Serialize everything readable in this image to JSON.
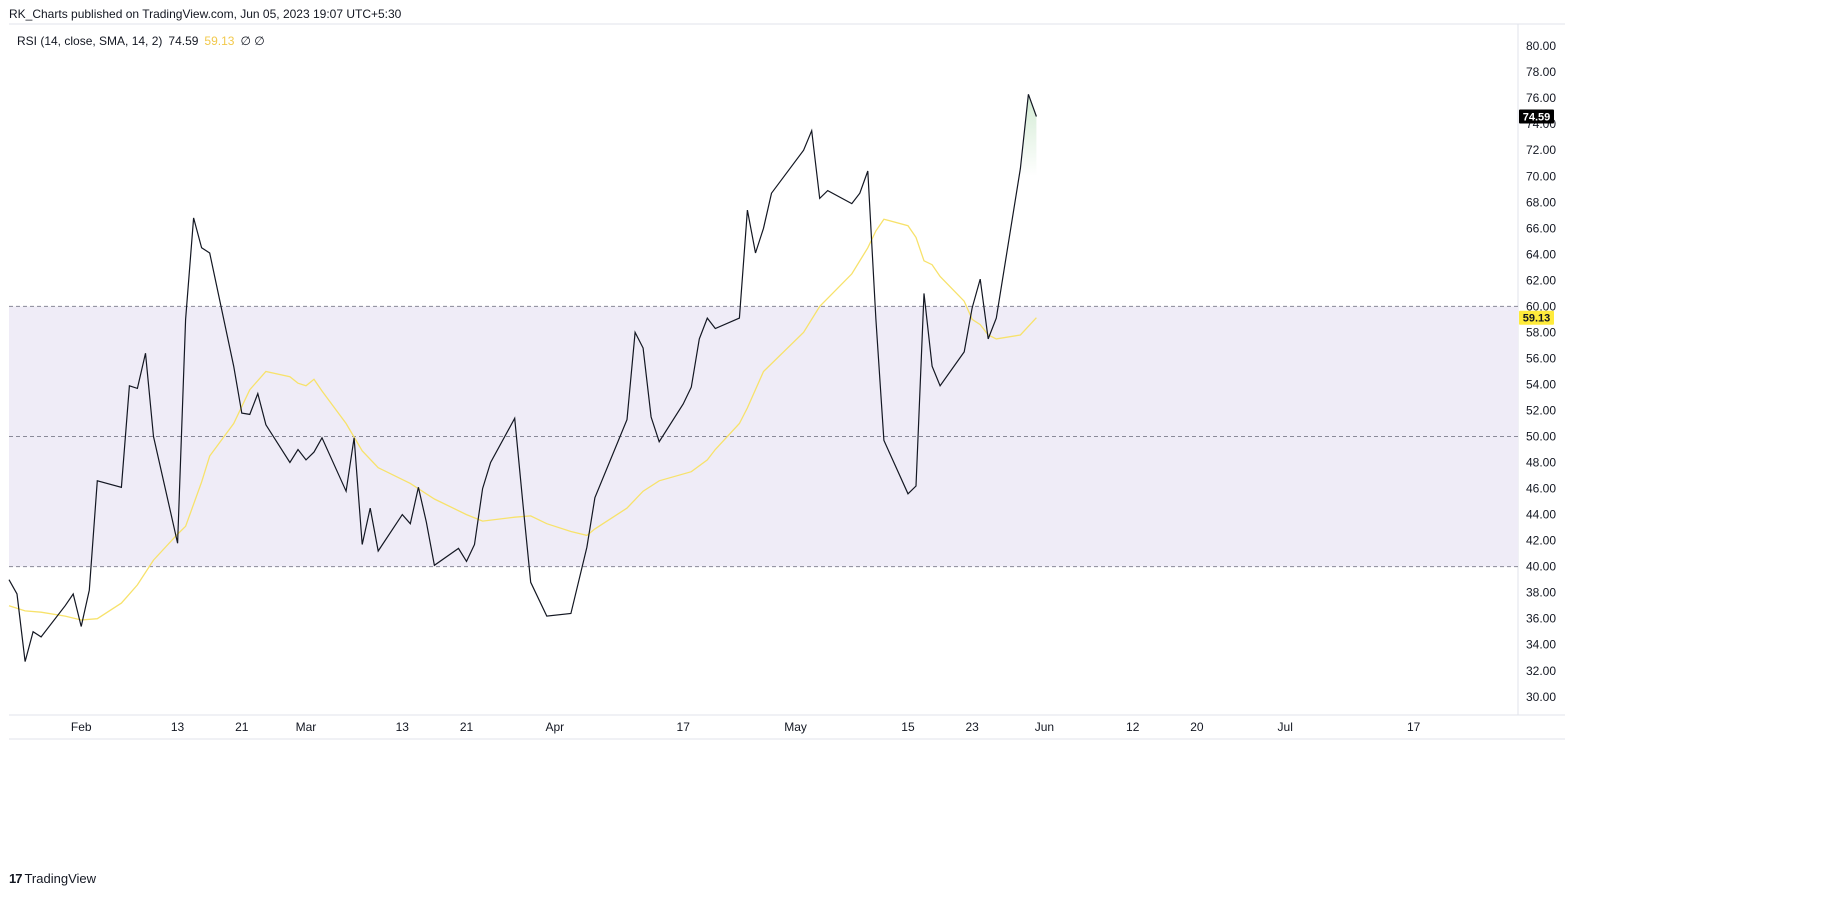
{
  "header": {
    "published": "RK_Charts published on TradingView.com, Jun 05, 2023 19:07 UTC+5:30"
  },
  "indicator": {
    "name": "RSI (14, close, SMA, 14, 2)",
    "rsi_value": "74.59",
    "sma_value": "59.13",
    "extra": "∅  ∅"
  },
  "brand": {
    "mark": "17",
    "name": "TradingView"
  },
  "colors": {
    "rsi_line": "#131722",
    "sma_line": "#f7e26b",
    "band_fill": "#efecf7",
    "band_line": "#8a8a99",
    "sma_badge": "#ffeb3b",
    "rsi_badge": "#000000"
  },
  "chart_data": {
    "type": "line",
    "title": "",
    "ylim": [
      28.6,
      81.7
    ],
    "yticks": [
      30,
      32,
      34,
      36,
      38,
      40,
      42,
      44,
      46,
      48,
      50,
      52,
      54,
      56,
      58,
      60,
      62,
      64,
      66,
      68,
      70,
      72,
      74,
      76,
      78,
      80
    ],
    "ytick_labels": [
      "30.00",
      "32.00",
      "34.00",
      "36.00",
      "38.00",
      "40.00",
      "42.00",
      "44.00",
      "46.00",
      "48.00",
      "50.00",
      "52.00",
      "54.00",
      "56.00",
      "58.00",
      "60.00",
      "62.00",
      "64.00",
      "66.00",
      "68.00",
      "70.00",
      "72.00",
      "74.00",
      "76.00",
      "78.00",
      "80.00"
    ],
    "xlim": [
      "2023-01-23",
      "2023-07-30"
    ],
    "xticks": [
      {
        "date": "2023-02-01",
        "label": "Feb"
      },
      {
        "date": "2023-02-13",
        "label": "13"
      },
      {
        "date": "2023-02-21",
        "label": "21"
      },
      {
        "date": "2023-03-01",
        "label": "Mar"
      },
      {
        "date": "2023-03-13",
        "label": "13"
      },
      {
        "date": "2023-03-21",
        "label": "21"
      },
      {
        "date": "2023-04-01",
        "label": "Apr"
      },
      {
        "date": "2023-04-17",
        "label": "17"
      },
      {
        "date": "2023-05-01",
        "label": "May"
      },
      {
        "date": "2023-05-15",
        "label": "15"
      },
      {
        "date": "2023-05-23",
        "label": "23"
      },
      {
        "date": "2023-06-01",
        "label": "Jun"
      },
      {
        "date": "2023-06-12",
        "label": "12"
      },
      {
        "date": "2023-06-20",
        "label": "20"
      },
      {
        "date": "2023-07-01",
        "label": "Jul"
      },
      {
        "date": "2023-07-17",
        "label": "17"
      }
    ],
    "bands": {
      "upper": 60,
      "middle": 50,
      "lower": 40
    },
    "grid": false,
    "series": [
      {
        "values": [
          [
            "2023-01-23",
            39.0
          ],
          [
            "2023-01-24",
            37.9
          ],
          [
            "2023-01-25",
            32.7
          ],
          [
            "2023-01-26",
            35.0
          ],
          [
            "2023-01-27",
            34.6
          ],
          [
            "2023-01-30",
            37.0
          ],
          [
            "2023-01-31",
            37.9
          ],
          [
            "2023-02-01",
            35.4
          ],
          [
            "2023-02-02",
            38.2
          ],
          [
            "2023-02-03",
            46.6
          ],
          [
            "2023-02-06",
            46.1
          ],
          [
            "2023-02-07",
            53.9
          ],
          [
            "2023-02-08",
            53.7
          ],
          [
            "2023-02-09",
            56.4
          ],
          [
            "2023-02-10",
            50.0
          ],
          [
            "2023-02-13",
            41.8
          ],
          [
            "2023-02-14",
            59.0
          ],
          [
            "2023-02-15",
            66.8
          ],
          [
            "2023-02-16",
            64.5
          ],
          [
            "2023-02-17",
            64.1
          ],
          [
            "2023-02-20",
            55.4
          ],
          [
            "2023-02-21",
            51.8
          ],
          [
            "2023-02-22",
            51.7
          ],
          [
            "2023-02-23",
            53.3
          ],
          [
            "2023-02-24",
            50.9
          ],
          [
            "2023-02-27",
            48.0
          ],
          [
            "2023-02-28",
            49.0
          ],
          [
            "2023-03-01",
            48.2
          ],
          [
            "2023-03-02",
            48.8
          ],
          [
            "2023-03-03",
            49.9
          ],
          [
            "2023-03-06",
            45.8
          ],
          [
            "2023-03-07",
            49.9
          ],
          [
            "2023-03-08",
            41.7
          ],
          [
            "2023-03-09",
            44.5
          ],
          [
            "2023-03-10",
            41.2
          ],
          [
            "2023-03-13",
            44.0
          ],
          [
            "2023-03-14",
            43.3
          ],
          [
            "2023-03-15",
            46.1
          ],
          [
            "2023-03-16",
            43.4
          ],
          [
            "2023-03-17",
            40.1
          ],
          [
            "2023-03-20",
            41.4
          ],
          [
            "2023-03-21",
            40.4
          ],
          [
            "2023-03-22",
            41.7
          ],
          [
            "2023-03-23",
            46.0
          ],
          [
            "2023-03-24",
            48.0
          ],
          [
            "2023-03-27",
            51.4
          ],
          [
            "2023-03-28",
            45.0
          ],
          [
            "2023-03-29",
            38.8
          ],
          [
            "2023-03-31",
            36.2
          ],
          [
            "2023-04-03",
            36.4
          ],
          [
            "2023-04-05",
            41.5
          ],
          [
            "2023-04-06",
            45.3
          ],
          [
            "2023-04-10",
            51.3
          ],
          [
            "2023-04-11",
            58.0
          ],
          [
            "2023-04-12",
            56.8
          ],
          [
            "2023-04-13",
            51.5
          ],
          [
            "2023-04-14",
            49.6
          ],
          [
            "2023-04-17",
            52.5
          ],
          [
            "2023-04-18",
            53.8
          ],
          [
            "2023-04-19",
            57.5
          ],
          [
            "2023-04-20",
            59.1
          ],
          [
            "2023-04-21",
            58.3
          ],
          [
            "2023-04-24",
            59.1
          ],
          [
            "2023-04-25",
            67.4
          ],
          [
            "2023-04-26",
            64.1
          ],
          [
            "2023-04-27",
            66.0
          ],
          [
            "2023-04-28",
            68.7
          ],
          [
            "2023-05-02",
            72.0
          ],
          [
            "2023-05-03",
            73.5
          ],
          [
            "2023-05-04",
            68.3
          ],
          [
            "2023-05-05",
            68.9
          ],
          [
            "2023-05-08",
            67.9
          ],
          [
            "2023-05-09",
            68.7
          ],
          [
            "2023-05-10",
            70.4
          ],
          [
            "2023-05-11",
            59.0
          ],
          [
            "2023-05-12",
            49.7
          ],
          [
            "2023-05-15",
            45.6
          ],
          [
            "2023-05-16",
            46.2
          ],
          [
            "2023-05-17",
            61.0
          ],
          [
            "2023-05-18",
            55.4
          ],
          [
            "2023-05-19",
            53.9
          ],
          [
            "2023-05-22",
            56.5
          ],
          [
            "2023-05-23",
            59.9
          ],
          [
            "2023-05-24",
            62.1
          ],
          [
            "2023-05-25",
            57.5
          ],
          [
            "2023-05-26",
            59.1
          ],
          [
            "2023-05-29",
            70.6
          ],
          [
            "2023-05-30",
            76.3
          ],
          [
            "2023-05-31",
            74.59
          ]
        ]
      },
      {
        "values": [
          [
            "2023-01-23",
            37.0
          ],
          [
            "2023-01-25",
            36.6
          ],
          [
            "2023-01-27",
            36.5
          ],
          [
            "2023-01-30",
            36.2
          ],
          [
            "2023-02-01",
            35.9
          ],
          [
            "2023-02-03",
            36.0
          ],
          [
            "2023-02-06",
            37.2
          ],
          [
            "2023-02-08",
            38.6
          ],
          [
            "2023-02-10",
            40.5
          ],
          [
            "2023-02-13",
            42.5
          ],
          [
            "2023-02-14",
            43.1
          ],
          [
            "2023-02-16",
            46.5
          ],
          [
            "2023-02-17",
            48.5
          ],
          [
            "2023-02-20",
            51.0
          ],
          [
            "2023-02-22",
            53.6
          ],
          [
            "2023-02-24",
            55.0
          ],
          [
            "2023-02-27",
            54.6
          ],
          [
            "2023-02-28",
            54.1
          ],
          [
            "2023-03-01",
            53.9
          ],
          [
            "2023-03-02",
            54.4
          ],
          [
            "2023-03-03",
            53.5
          ],
          [
            "2023-03-06",
            51.0
          ],
          [
            "2023-03-08",
            48.9
          ],
          [
            "2023-03-10",
            47.6
          ],
          [
            "2023-03-14",
            46.4
          ],
          [
            "2023-03-17",
            45.2
          ],
          [
            "2023-03-21",
            44.0
          ],
          [
            "2023-03-23",
            43.5
          ],
          [
            "2023-03-27",
            43.8
          ],
          [
            "2023-03-29",
            43.9
          ],
          [
            "2023-03-31",
            43.3
          ],
          [
            "2023-04-03",
            42.7
          ],
          [
            "2023-04-05",
            42.4
          ],
          [
            "2023-04-06",
            42.9
          ],
          [
            "2023-04-10",
            44.5
          ],
          [
            "2023-04-12",
            45.8
          ],
          [
            "2023-04-14",
            46.6
          ],
          [
            "2023-04-18",
            47.3
          ],
          [
            "2023-04-20",
            48.2
          ],
          [
            "2023-04-21",
            49.0
          ],
          [
            "2023-04-24",
            51.0
          ],
          [
            "2023-04-25",
            52.2
          ],
          [
            "2023-04-27",
            55.0
          ],
          [
            "2023-05-02",
            58.0
          ],
          [
            "2023-05-04",
            60.0
          ],
          [
            "2023-05-08",
            62.5
          ],
          [
            "2023-05-10",
            64.5
          ],
          [
            "2023-05-11",
            65.8
          ],
          [
            "2023-05-12",
            66.7
          ],
          [
            "2023-05-15",
            66.2
          ],
          [
            "2023-05-16",
            65.3
          ],
          [
            "2023-05-17",
            63.5
          ],
          [
            "2023-05-18",
            63.2
          ],
          [
            "2023-05-19",
            62.3
          ],
          [
            "2023-05-22",
            60.4
          ],
          [
            "2023-05-23",
            59.0
          ],
          [
            "2023-05-24",
            58.6
          ],
          [
            "2023-05-25",
            57.8
          ],
          [
            "2023-05-26",
            57.5
          ],
          [
            "2023-05-29",
            57.8
          ],
          [
            "2023-05-31",
            59.13
          ]
        ]
      }
    ],
    "last_values": {
      "rsi": 74.59,
      "sma": 59.13
    }
  }
}
